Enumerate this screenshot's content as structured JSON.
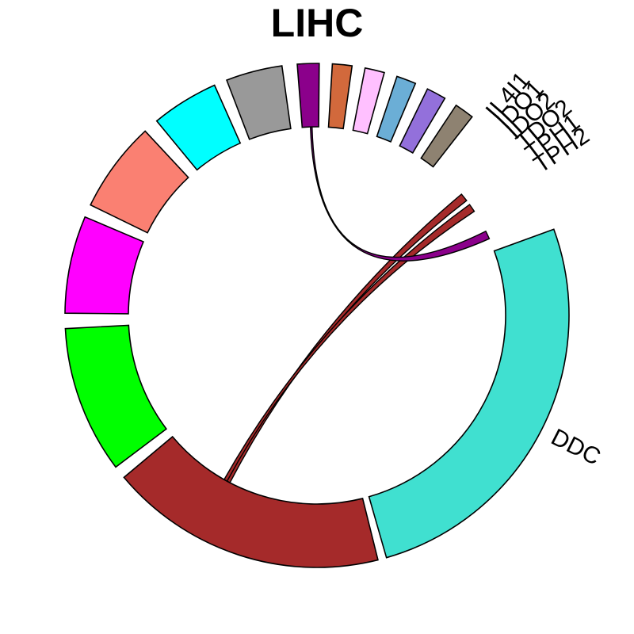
{
  "chart_data": {
    "type": "chord",
    "title": "LIHC",
    "sectors": [
      {
        "label": "DDC",
        "start": -20,
        "end": 74,
        "color": "#40E0D0"
      },
      {
        "label": "",
        "start": 76,
        "end": 140,
        "color": "#A52A2A"
      },
      {
        "label": "",
        "start": 143,
        "end": 177,
        "color": "#00FF00"
      },
      {
        "label": "",
        "start": 180.5,
        "end": 203,
        "color": "#FF00FF"
      },
      {
        "label": "",
        "start": 206,
        "end": 227,
        "color": "#FA8072"
      },
      {
        "label": "",
        "start": 230.5,
        "end": 246,
        "color": "#00FFFF"
      },
      {
        "label": "",
        "start": 249,
        "end": 262,
        "color": "#999999"
      },
      {
        "label": "",
        "start": 265.5,
        "end": 270.5,
        "color": "#8B008B"
      },
      {
        "label": "",
        "start": 273.5,
        "end": 278,
        "color": "#D2693C"
      },
      {
        "label": "",
        "start": 281,
        "end": 285.5,
        "color": "#FFC0FF"
      },
      {
        "label": "",
        "start": 288.5,
        "end": 293,
        "color": "#6BAED6"
      },
      {
        "label": "",
        "start": 296,
        "end": 300.5,
        "color": "#9370DB"
      },
      {
        "label": "",
        "start": 303.5,
        "end": 308,
        "color": "#8E8271"
      },
      {
        "label": "IL4I1",
        "start": 311,
        "end": 311,
        "color": "#000000"
      },
      {
        "label": "IDO1",
        "start": 314,
        "end": 314,
        "color": "#000000"
      },
      {
        "label": "IDO2",
        "start": 317,
        "end": 317,
        "color": "#000000"
      },
      {
        "label": "TDO2",
        "start": 320,
        "end": 320,
        "color": "#A52A2A"
      },
      {
        "label": "TPH1",
        "start": 323,
        "end": 323,
        "color": "#A52A2A"
      },
      {
        "label": "TPH2",
        "start": 326,
        "end": 326,
        "color": "#8B008B"
      },
      {
        "label": "",
        "start": 329,
        "end": 329,
        "color": "#000000"
      },
      {
        "label": "",
        "start": 332,
        "end": 332,
        "color": "#000000"
      }
    ],
    "links": [
      {
        "from": [
          320,
          322.5
        ],
        "to": [
          117.5,
          118.5
        ],
        "color": "#A52A2A"
      },
      {
        "from": [
          324,
          326.5
        ],
        "to": [
          118.5,
          119.5
        ],
        "color": "#A52A2A"
      },
      {
        "from": [
          333.5,
          336
        ],
        "to": [
          268,
          268.5
        ],
        "color": "#8B008B"
      }
    ]
  }
}
